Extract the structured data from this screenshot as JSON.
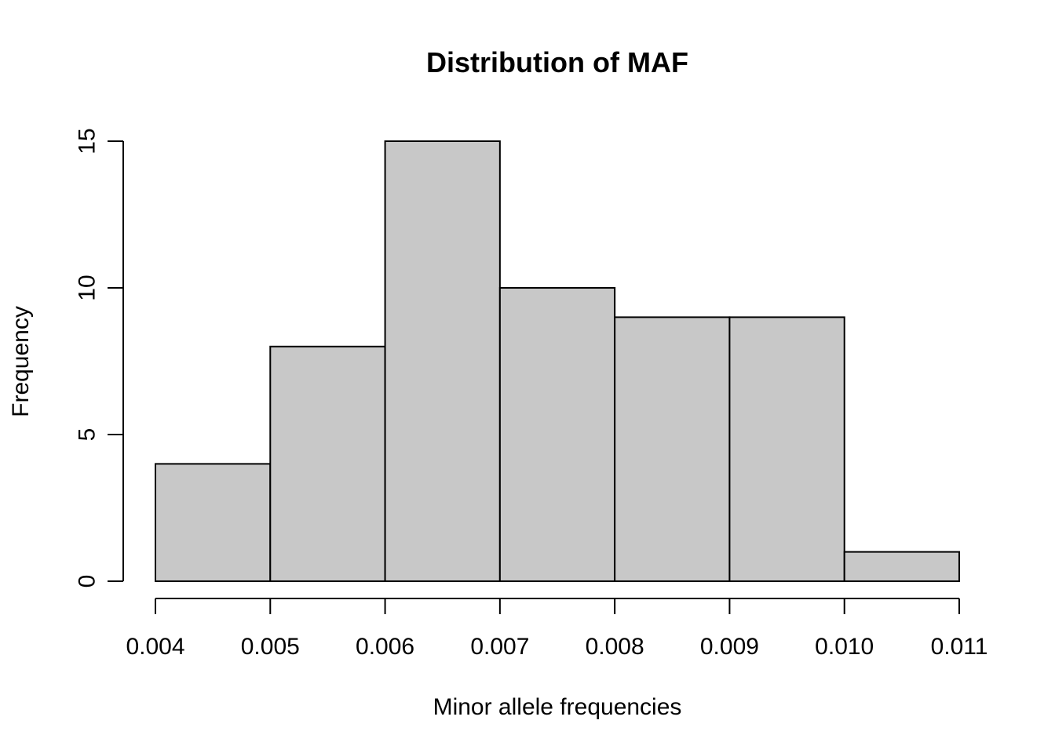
{
  "chart_data": {
    "type": "bar",
    "subtype": "histogram",
    "title": "Distribution of MAF",
    "xlabel": "Minor allele frequencies",
    "ylabel": "Frequency",
    "bins": [
      {
        "start": 0.004,
        "end": 0.005,
        "count": 4
      },
      {
        "start": 0.005,
        "end": 0.006,
        "count": 8
      },
      {
        "start": 0.006,
        "end": 0.007,
        "count": 15
      },
      {
        "start": 0.007,
        "end": 0.008,
        "count": 10
      },
      {
        "start": 0.008,
        "end": 0.009,
        "count": 9
      },
      {
        "start": 0.009,
        "end": 0.01,
        "count": 9
      },
      {
        "start": 0.01,
        "end": 0.011,
        "count": 1
      }
    ],
    "x_ticks": [
      {
        "value": 0.004,
        "label": "0.004"
      },
      {
        "value": 0.005,
        "label": "0.005"
      },
      {
        "value": 0.006,
        "label": "0.006"
      },
      {
        "value": 0.007,
        "label": "0.007"
      },
      {
        "value": 0.008,
        "label": "0.008"
      },
      {
        "value": 0.009,
        "label": "0.009"
      },
      {
        "value": 0.01,
        "label": "0.010"
      },
      {
        "value": 0.011,
        "label": "0.011"
      }
    ],
    "y_ticks": [
      {
        "value": 0,
        "label": "0"
      },
      {
        "value": 5,
        "label": "5"
      },
      {
        "value": 10,
        "label": "10"
      },
      {
        "value": 15,
        "label": "15"
      }
    ],
    "xlim": [
      0.004,
      0.011
    ],
    "ylim": [
      0,
      15
    ],
    "grid": false,
    "bar_color": "#c8c8c8",
    "edge_color": "#000000"
  }
}
